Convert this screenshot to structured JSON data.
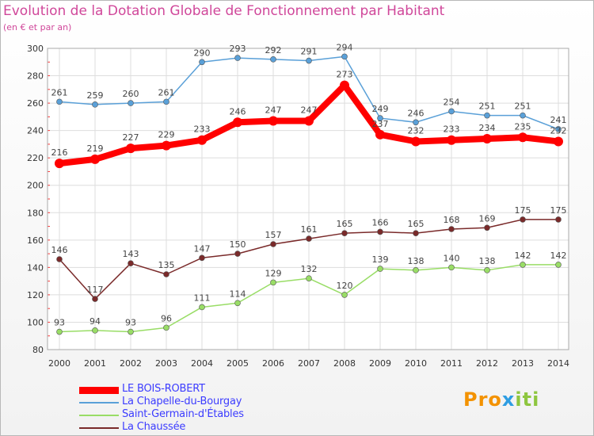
{
  "title": "Evolution de la Dotation Globale de Fonctionnement par Habitant",
  "subtitle": "(en € et par an)",
  "logo_text": {
    "a": "Pro",
    "b": "x",
    "c": "iti"
  },
  "chart_data": {
    "type": "line",
    "title": "Evolution de la Dotation Globale de Fonctionnement par Habitant",
    "subtitle": "(en € et par an)",
    "x": [
      2000,
      2001,
      2002,
      2003,
      2004,
      2005,
      2006,
      2007,
      2008,
      2009,
      2010,
      2011,
      2012,
      2013,
      2014
    ],
    "ylim": [
      80,
      300
    ],
    "yticks": [
      80,
      100,
      120,
      140,
      160,
      180,
      200,
      220,
      240,
      260,
      280,
      300
    ],
    "grid": true,
    "legend_position": "bottom-left",
    "series": [
      {
        "name": "LE BOIS-ROBERT",
        "color": "#ff0000",
        "values": [
          216,
          219,
          227,
          229,
          233,
          246,
          247,
          247,
          273,
          237,
          232,
          233,
          234,
          235,
          232
        ]
      },
      {
        "name": "La Chapelle-du-Bourgay",
        "color": "#5aa0d8",
        "values": [
          261,
          259,
          260,
          261,
          290,
          293,
          292,
          291,
          294,
          249,
          246,
          254,
          251,
          251,
          241
        ]
      },
      {
        "name": "Saint-Germain-d'Étables",
        "color": "#99dd66",
        "values": [
          93,
          94,
          93,
          96,
          111,
          114,
          129,
          132,
          120,
          139,
          138,
          140,
          138,
          142,
          142
        ]
      },
      {
        "name": "La Chaussée",
        "color": "#7a2a2a",
        "values": [
          146,
          117,
          143,
          135,
          147,
          150,
          157,
          161,
          165,
          166,
          165,
          168,
          169,
          175,
          175
        ]
      }
    ]
  }
}
